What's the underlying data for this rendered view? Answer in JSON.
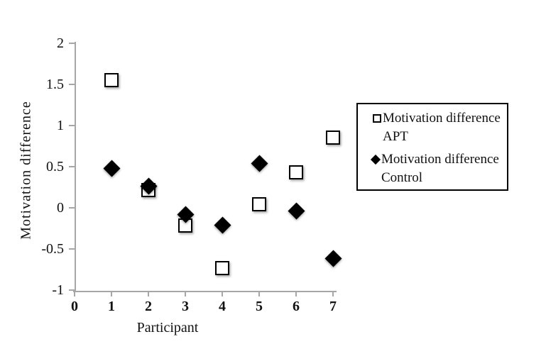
{
  "figure": {
    "background": "#ffffff",
    "axis_color": "#a6a6a6",
    "text_color": "#111111",
    "marker_color": "#000000"
  },
  "chart_data": {
    "type": "scatter",
    "title": "",
    "xlabel": "Participant",
    "ylabel": "Motivation difference",
    "xlim": [
      0,
      7
    ],
    "ylim": [
      -1,
      2
    ],
    "grid": false,
    "legend_position": "right",
    "x": [
      1,
      2,
      3,
      4,
      5,
      6,
      7
    ],
    "x_ticks": [
      {
        "label": "0",
        "value": 0
      },
      {
        "label": "1",
        "value": 1
      },
      {
        "label": "2",
        "value": 2
      },
      {
        "label": "3",
        "value": 3
      },
      {
        "label": "4",
        "value": 4
      },
      {
        "label": "5",
        "value": 5
      },
      {
        "label": "6",
        "value": 6
      },
      {
        "label": "7",
        "value": 7
      }
    ],
    "y_ticks": [
      {
        "label": "2",
        "value": 2
      },
      {
        "label": "1.5",
        "value": 1.5
      },
      {
        "label": "1",
        "value": 1
      },
      {
        "label": "0.5",
        "value": 0.5
      },
      {
        "label": "0",
        "value": 0
      },
      {
        "label": "-0.5",
        "value": -0.5
      },
      {
        "label": "-1",
        "value": -1
      }
    ],
    "series": [
      {
        "name": "Motivation difference APT",
        "marker": "open-square",
        "values": [
          1.55,
          0.21,
          -0.22,
          -0.74,
          0.04,
          0.43,
          0.85
        ]
      },
      {
        "name": "Motivation difference Control",
        "marker": "filled-diamond",
        "values": [
          0.48,
          0.26,
          -0.08,
          -0.21,
          0.54,
          -0.04,
          -0.62
        ]
      }
    ]
  }
}
